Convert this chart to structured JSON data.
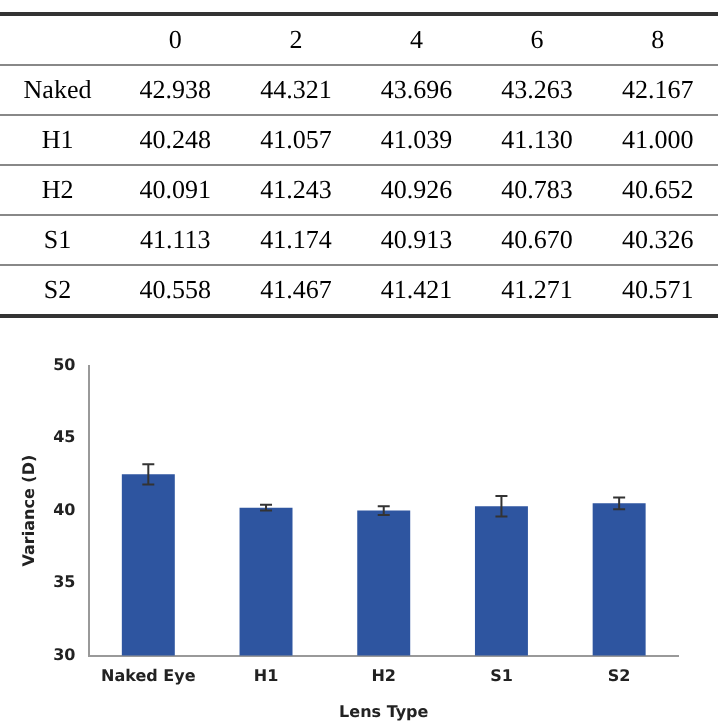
{
  "chart_data": [
    {
      "type": "heatmap",
      "categories": [
        "0",
        "2",
        "4",
        "6",
        "8"
      ],
      "y_categories": [
        "Naked",
        "H1",
        "H2",
        "S1",
        "S2"
      ],
      "cells": [
        [
          42.938,
          44.321,
          43.696,
          43.263,
          42.167
        ],
        [
          40.248,
          41.057,
          41.039,
          41.13,
          41.0
        ],
        [
          40.091,
          41.243,
          40.926,
          40.783,
          40.652
        ],
        [
          41.113,
          41.174,
          40.913,
          40.67,
          40.326
        ],
        [
          40.558,
          41.467,
          41.421,
          41.271,
          40.571
        ]
      ],
      "cell_labels": [
        [
          "42.938",
          "44.321",
          "43.696",
          "43.263",
          "42.167"
        ],
        [
          "40.248",
          "41.057",
          "41.039",
          "41.130",
          "41.000"
        ],
        [
          "40.091",
          "41.243",
          "40.926",
          "40.783",
          "40.652"
        ],
        [
          "41.113",
          "41.174",
          "40.913",
          "40.670",
          "40.326"
        ],
        [
          "40.558",
          "41.467",
          "41.421",
          "41.271",
          "40.571"
        ]
      ]
    },
    {
      "type": "bar",
      "xlabel": "Lens Type",
      "ylabel": "Variance (D)",
      "categories": [
        "Naked Eye",
        "H1",
        "H2",
        "S1",
        "S2"
      ],
      "values": [
        42.5,
        40.2,
        40.0,
        40.3,
        40.5
      ],
      "errors": [
        0.7,
        0.2,
        0.3,
        0.7,
        0.4
      ],
      "color": "#2e55a0",
      "ylim": [
        30,
        50
      ],
      "yticks": [
        30,
        35,
        40,
        45,
        50
      ],
      "grid": false,
      "legend": false
    }
  ]
}
